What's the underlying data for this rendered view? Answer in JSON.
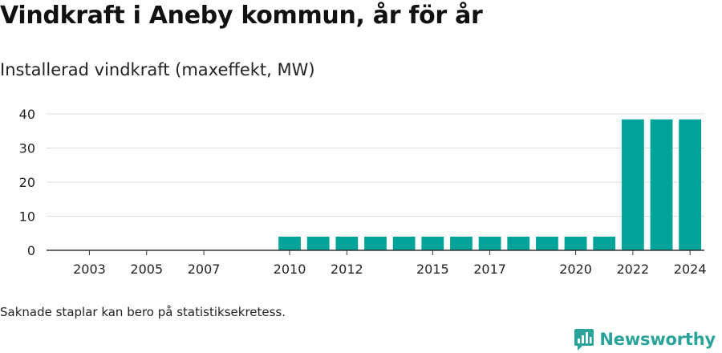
{
  "title": "Vindkraft i Aneby kommun, år för år",
  "subtitle": "Installerad vindkraft (maxeffekt, MW)",
  "footnote": "Saknade staplar kan bero på statistiksekretess.",
  "brand": {
    "name": "Newsworthy",
    "icon": "newsworthy-logo-icon"
  },
  "colors": {
    "bar": "#00a39a",
    "grid": "#dddddd",
    "axis": "#333333",
    "brand": "#2aa39a"
  },
  "chart_data": {
    "type": "bar",
    "categories": [
      "2002",
      "2003",
      "2004",
      "2005",
      "2006",
      "2007",
      "2008",
      "2009",
      "2010",
      "2011",
      "2012",
      "2013",
      "2014",
      "2015",
      "2016",
      "2017",
      "2018",
      "2019",
      "2020",
      "2021",
      "2022",
      "2023",
      "2024"
    ],
    "values": [
      null,
      null,
      null,
      null,
      null,
      null,
      null,
      null,
      4,
      4,
      4,
      4,
      4,
      4,
      4,
      4,
      4,
      4,
      4,
      4,
      38.4,
      38.4,
      38.4
    ],
    "tick_labels": [
      "2003",
      "2005",
      "2007",
      "2010",
      "2012",
      "2015",
      "2017",
      "2020",
      "2022",
      "2024"
    ],
    "yticks": [
      0,
      10,
      20,
      30,
      40
    ],
    "ylim": [
      0,
      40
    ],
    "grid": true,
    "legend": "none"
  }
}
